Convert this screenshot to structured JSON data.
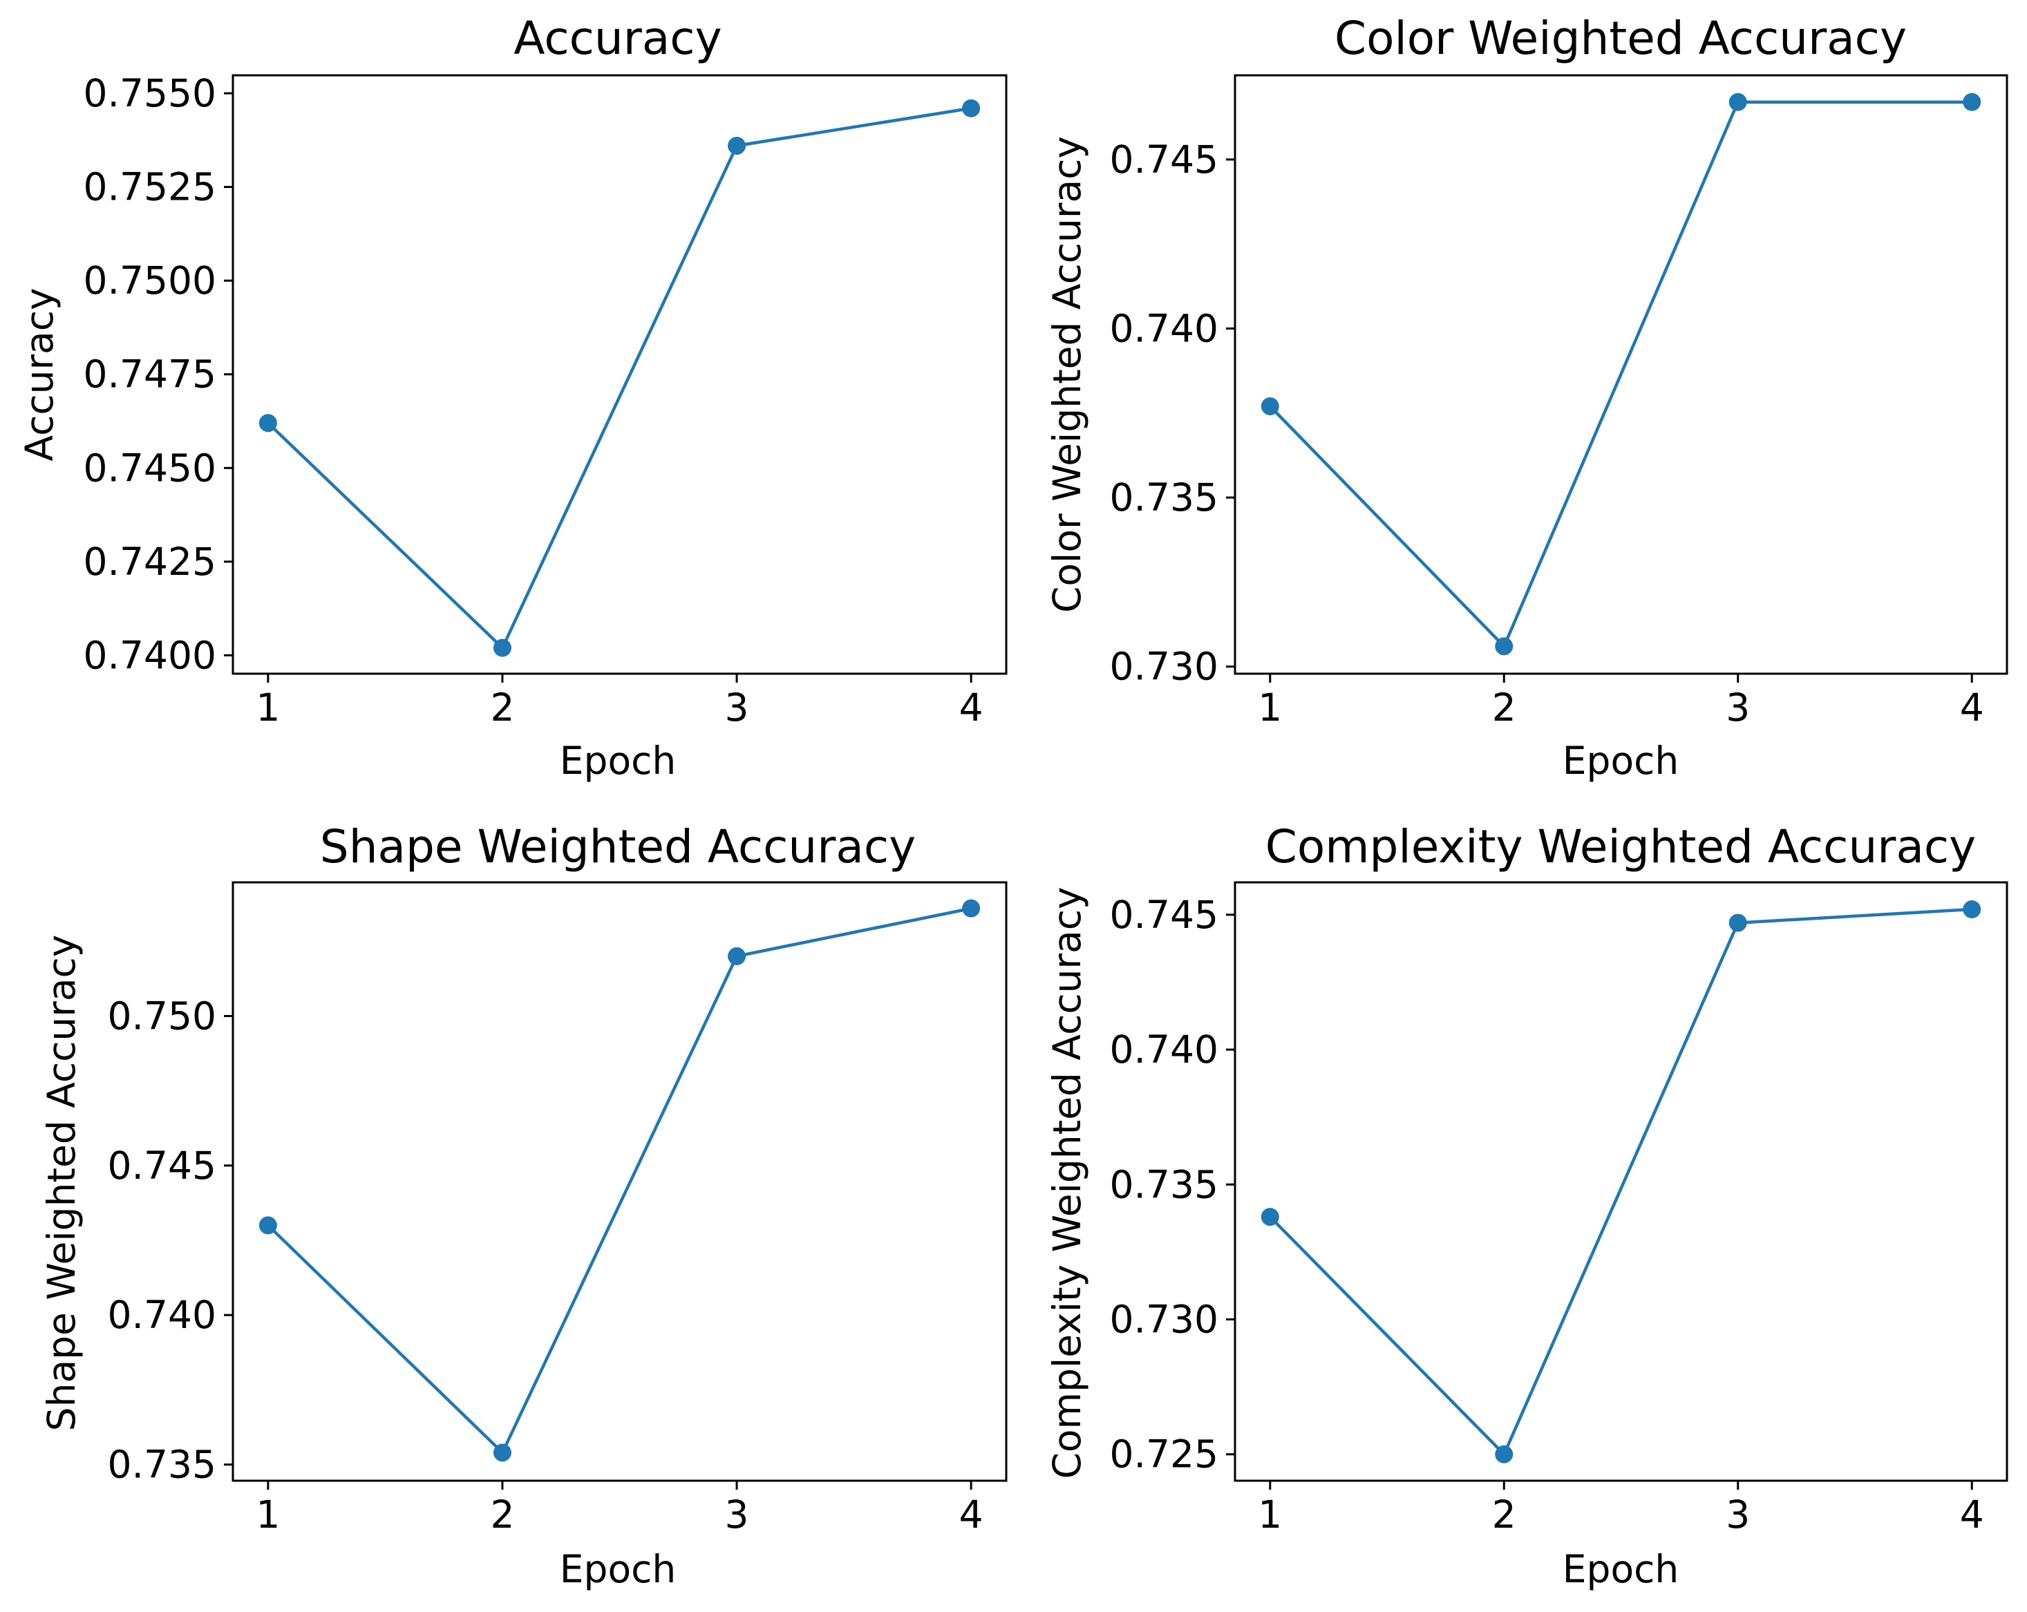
{
  "figure": {
    "line_color": "#1f77b4"
  },
  "chart_data": [
    {
      "type": "line",
      "title": "Accuracy",
      "xlabel": "Epoch",
      "ylabel": "Accuracy",
      "x": [
        1,
        2,
        3,
        4
      ],
      "values": [
        0.7462,
        0.7402,
        0.7536,
        0.7546
      ],
      "xticks": [
        "1",
        "2",
        "3",
        "4"
      ],
      "yticks": [
        0.74,
        0.7425,
        0.745,
        0.7475,
        0.75,
        0.7525,
        0.755
      ],
      "ytick_labels": [
        "0.7400",
        "0.7425",
        "0.7450",
        "0.7475",
        "0.7500",
        "0.7525",
        "0.7550"
      ],
      "xlim": [
        0.85,
        4.15
      ],
      "ylim": [
        0.73951,
        0.75548
      ],
      "marker": "circle",
      "grid": false
    },
    {
      "type": "line",
      "title": "Color Weighted Accuracy",
      "xlabel": "Epoch",
      "ylabel": "Color Weighted Accuracy",
      "x": [
        1,
        2,
        3,
        4
      ],
      "values": [
        0.7377,
        0.7306,
        0.7467,
        0.7467
      ],
      "xticks": [
        "1",
        "2",
        "3",
        "4"
      ],
      "yticks": [
        0.73,
        0.735,
        0.74,
        0.745
      ],
      "ytick_labels": [
        "0.730",
        "0.735",
        "0.740",
        "0.745"
      ],
      "xlim": [
        0.85,
        4.15
      ],
      "ylim": [
        0.72979,
        0.74749
      ],
      "marker": "circle",
      "grid": false
    },
    {
      "type": "line",
      "title": "Shape Weighted Accuracy",
      "xlabel": "Epoch",
      "ylabel": "Shape Weighted Accuracy",
      "x": [
        1,
        2,
        3,
        4
      ],
      "values": [
        0.743,
        0.7354,
        0.752,
        0.7536
      ],
      "xticks": [
        "1",
        "2",
        "3",
        "4"
      ],
      "yticks": [
        0.735,
        0.74,
        0.745,
        0.75
      ],
      "ytick_labels": [
        "0.735",
        "0.740",
        "0.745",
        "0.750"
      ],
      "xlim": [
        0.85,
        4.15
      ],
      "ylim": [
        0.73446,
        0.75447
      ],
      "marker": "circle",
      "grid": false
    },
    {
      "type": "line",
      "title": "Complexity Weighted Accuracy",
      "xlabel": "Epoch",
      "ylabel": "Complexity Weighted Accuracy",
      "x": [
        1,
        2,
        3,
        4
      ],
      "values": [
        0.7338,
        0.725,
        0.7447,
        0.7452
      ],
      "xticks": [
        "1",
        "2",
        "3",
        "4"
      ],
      "yticks": [
        0.725,
        0.73,
        0.735,
        0.74,
        0.745
      ],
      "ytick_labels": [
        "0.725",
        "0.730",
        "0.735",
        "0.740",
        "0.745"
      ],
      "xlim": [
        0.85,
        4.15
      ],
      "ylim": [
        0.72402,
        0.7462
      ],
      "marker": "circle",
      "grid": false
    }
  ]
}
